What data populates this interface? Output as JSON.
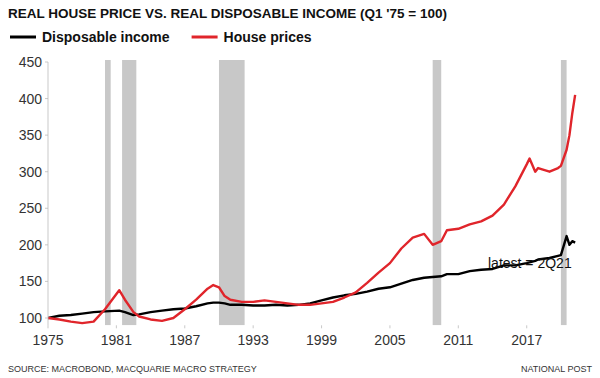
{
  "chart_data": {
    "type": "line",
    "title": "REAL HOUSE PRICE VS. REAL DISPOSABLE INCOME (Q1 '75 = 100)",
    "annotation": "latest = 2Q21",
    "source": "SOURCE: MACROBOND, MACQUARIE MACRO STRATEGY",
    "credit": "NATIONAL POST",
    "x": [
      1975,
      1976,
      1977,
      1978,
      1979,
      1980,
      1981.25,
      1981.75,
      1982.5,
      1983,
      1984,
      1985,
      1986,
      1987,
      1988,
      1989,
      1989.5,
      1990,
      1990.5,
      1991,
      1992,
      1993,
      1994,
      1995,
      1996,
      1997,
      1998,
      1999,
      2000,
      2001,
      2002,
      2003,
      2004,
      2005,
      2006,
      2007,
      2008,
      2008.75,
      2009.5,
      2010,
      2011,
      2012,
      2013,
      2014,
      2015,
      2016,
      2017,
      2017.25,
      2017.75,
      2018,
      2019,
      2019.75,
      2020,
      2020.5,
      2020.75,
      2021,
      2021.25
    ],
    "series": [
      {
        "name": "Disposable income",
        "color": "#000000",
        "values": [
          100,
          103,
          104,
          106,
          108,
          109,
          110,
          108,
          104,
          105,
          108,
          110,
          112,
          113,
          116,
          120,
          121,
          121,
          120,
          118,
          118,
          117,
          117,
          118,
          117,
          118,
          120,
          124,
          128,
          131,
          133,
          136,
          140,
          142,
          147,
          152,
          155,
          156,
          157,
          160,
          160,
          164,
          166,
          167,
          172,
          172,
          175,
          176,
          178,
          180,
          182,
          185,
          186,
          212,
          200,
          205,
          203
        ]
      },
      {
        "name": "House prices",
        "color": "#e0252b",
        "values": [
          100,
          98,
          95,
          93,
          95,
          112,
          138,
          125,
          108,
          102,
          98,
          96,
          100,
          112,
          125,
          140,
          145,
          142,
          130,
          125,
          122,
          122,
          124,
          122,
          120,
          118,
          118,
          120,
          122,
          128,
          135,
          148,
          162,
          175,
          195,
          210,
          215,
          200,
          205,
          220,
          222,
          228,
          232,
          240,
          255,
          280,
          310,
          318,
          300,
          305,
          300,
          305,
          308,
          330,
          350,
          380,
          405
        ]
      }
    ],
    "shaded_periods": [
      [
        1980.0,
        1980.5
      ],
      [
        1981.5,
        1982.75
      ],
      [
        1990.0,
        1992.25
      ],
      [
        2008.75,
        2009.5
      ],
      [
        2020.0,
        2020.5
      ]
    ],
    "shade_color": "#c8c8c8",
    "xlim": [
      1975,
      2021.5
    ],
    "xticks": [
      1975,
      1981,
      1987,
      1993,
      1999,
      2005,
      2011,
      2017
    ],
    "ylim": [
      90,
      450
    ],
    "yticks": [
      100,
      150,
      200,
      250,
      300,
      350,
      400,
      450
    ],
    "grid": false,
    "legend": "top-left"
  }
}
